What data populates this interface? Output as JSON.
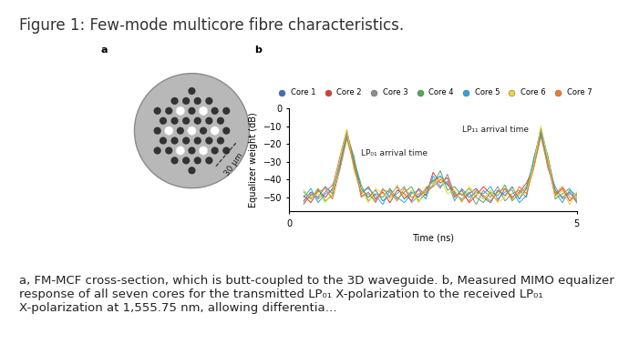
{
  "title": "Figure 1: Few-mode multicore fibre characteristics.",
  "panel_a": {
    "label": "a",
    "scale_label": "30 μm"
  },
  "chart_data": {
    "panel_label": "b",
    "type": "line",
    "x_label": "Time (ns)",
    "y_label": "Equalizer weight (dB)",
    "xlim": [
      0,
      5
    ],
    "xticks": [
      0,
      5
    ],
    "ylim": [
      -58,
      0
    ],
    "yticks": [
      0,
      {
        "value": -10,
        "label": "−10"
      },
      {
        "value": -20,
        "label": "−20"
      },
      {
        "value": -30,
        "label": "−30"
      },
      {
        "value": -40,
        "label": "−40"
      },
      {
        "value": -50,
        "label": "−50"
      }
    ],
    "legend": "upper center",
    "annotations": [
      "LP₀₁ arrival time",
      "LP₁₁ arrival time"
    ],
    "x": [
      0.25,
      0.375,
      0.5,
      0.625,
      0.75,
      0.875,
      1.0,
      1.125,
      1.25,
      1.375,
      1.5,
      1.625,
      1.75,
      1.875,
      2.0,
      2.125,
      2.25,
      2.375,
      2.5,
      2.625,
      2.75,
      2.875,
      3.0,
      3.125,
      3.25,
      3.375,
      3.5,
      3.625,
      3.75,
      3.875,
      4.0,
      4.125,
      4.25,
      4.375,
      4.5,
      4.625,
      4.75,
      4.875,
      5.0
    ],
    "series": [
      {
        "name": "Core 1",
        "color": "#3a6fc4",
        "values": [
          -52,
          -47,
          -50,
          -44,
          -48,
          -32,
          -14,
          -30,
          -45,
          -50,
          -46,
          -52,
          -49,
          -44,
          -51,
          -47,
          -50,
          -45,
          -41,
          -38,
          -43,
          -47,
          -52,
          -48,
          -45,
          -50,
          -53,
          -46,
          -49,
          -44,
          -51,
          -45,
          -30,
          -11,
          -28,
          -46,
          -50,
          -47,
          -53
        ]
      },
      {
        "name": "Core 2",
        "color": "#e03a2f",
        "values": [
          -49,
          -53,
          -46,
          -50,
          -45,
          -28,
          -12,
          -33,
          -48,
          -44,
          -51,
          -47,
          -53,
          -46,
          -48,
          -52,
          -45,
          -49,
          -36,
          -42,
          -39,
          -50,
          -46,
          -53,
          -49,
          -44,
          -48,
          -52,
          -45,
          -50,
          -47,
          -42,
          -33,
          -13,
          -31,
          -49,
          -45,
          -52,
          -48
        ]
      },
      {
        "name": "Core 3",
        "color": "#8c8c8c",
        "values": [
          -54,
          -48,
          -51,
          -47,
          -43,
          -34,
          -15,
          -27,
          -50,
          -47,
          -53,
          -45,
          -50,
          -48,
          -44,
          -53,
          -49,
          -46,
          -40,
          -45,
          -37,
          -48,
          -51,
          -47,
          -54,
          -46,
          -50,
          -44,
          -52,
          -48,
          -46,
          -50,
          -29,
          -12,
          -34,
          -44,
          -51,
          -48,
          -50
        ]
      },
      {
        "name": "Core 4",
        "color": "#4caf50",
        "values": [
          -47,
          -51,
          -45,
          -52,
          -49,
          -30,
          -13,
          -29,
          -43,
          -52,
          -48,
          -50,
          -45,
          -51,
          -47,
          -44,
          -52,
          -48,
          -43,
          -35,
          -46,
          -44,
          -49,
          -45,
          -50,
          -53,
          -47,
          -49,
          -43,
          -52,
          -48,
          -44,
          -31,
          -15,
          -27,
          -51,
          -48,
          -45,
          -52
        ]
      },
      {
        "name": "Core 5",
        "color": "#2aa7e0",
        "values": [
          -50,
          -45,
          -53,
          -48,
          -46,
          -33,
          -16,
          -31,
          -47,
          -45,
          -49,
          -54,
          -46,
          -50,
          -53,
          -48,
          -46,
          -51,
          -38,
          -44,
          -41,
          -52,
          -45,
          -50,
          -47,
          -48,
          -44,
          -51,
          -47,
          -46,
          -53,
          -49,
          -28,
          -14,
          -30,
          -47,
          -53,
          -46,
          -49
        ]
      },
      {
        "name": "Core 6",
        "color": "#f2d22e",
        "values": [
          -46,
          -50,
          -48,
          -53,
          -47,
          -29,
          -12,
          -35,
          -46,
          -53,
          -45,
          -48,
          -51,
          -43,
          -50,
          -46,
          -53,
          -44,
          -42,
          -39,
          -48,
          -46,
          -53,
          -44,
          -48,
          -51,
          -46,
          -53,
          -50,
          -45,
          -49,
          -47,
          -32,
          -10,
          -29,
          -50,
          -46,
          -54,
          -47
        ]
      },
      {
        "name": "Core 7",
        "color": "#f07b22",
        "values": [
          -53,
          -49,
          -47,
          -45,
          -51,
          -35,
          -17,
          -32,
          -49,
          -48,
          -52,
          -46,
          -47,
          -52,
          -45,
          -50,
          -48,
          -47,
          -44,
          -40,
          -42,
          -49,
          -48,
          -52,
          -46,
          -49,
          -52,
          -47,
          -45,
          -51,
          -44,
          -48,
          -34,
          -16,
          -33,
          -48,
          -44,
          -50,
          -51
        ]
      }
    ]
  },
  "caption": "a, FM-MCF cross-section, which is butt-coupled to the 3D waveguide. b, Measured MIMO equalizer response of all seven cores for the transmitted LP₀₁ X-polarization to the received LP₀₁ X-polarization at 1,555.75 nm, allowing differentia…"
}
